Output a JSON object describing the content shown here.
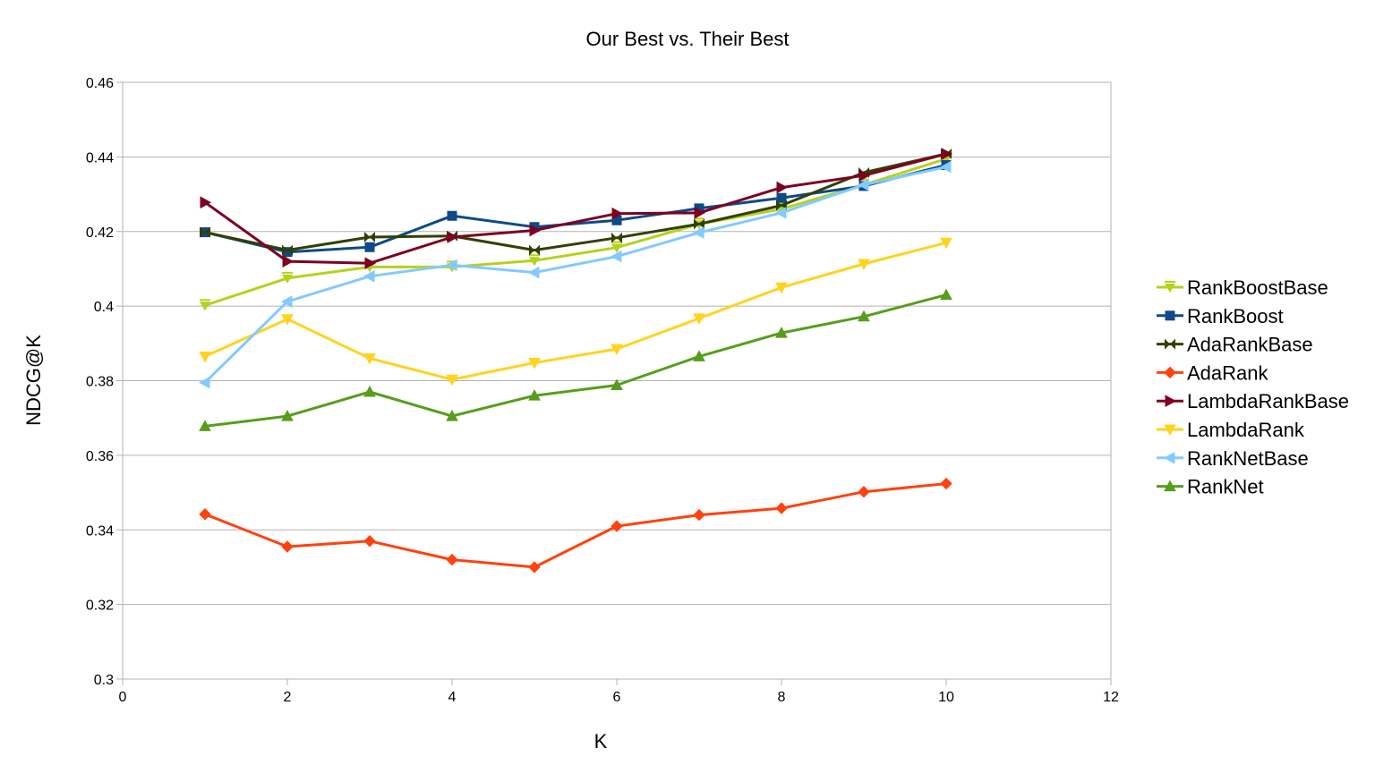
{
  "chart_data": {
    "type": "line",
    "title": "Our Best vs. Their Best",
    "xlabel": "K",
    "ylabel": "NDCG@K",
    "xlim": [
      0,
      12
    ],
    "ylim": [
      0.3,
      0.46
    ],
    "x_ticks": [
      "0",
      "2",
      "4",
      "6",
      "8",
      "10",
      "12"
    ],
    "y_ticks": [
      "0.3",
      "0.32",
      "0.34",
      "0.36",
      "0.38",
      "0.4",
      "0.42",
      "0.44",
      "0.46"
    ],
    "grid": "horizontal",
    "legend_position": "right",
    "x": [
      1,
      2,
      3,
      4,
      5,
      6,
      7,
      8,
      9,
      10
    ],
    "series": [
      {
        "name": "RankBoostBase",
        "color": "#b5d21a",
        "marker": "triangle-down-bar",
        "values": [
          0.4002,
          0.4075,
          0.4105,
          0.4105,
          0.4122,
          0.4157,
          0.422,
          0.426,
          0.4325,
          0.4395
        ]
      },
      {
        "name": "RankBoost",
        "color": "#0d4a87",
        "marker": "square",
        "values": [
          0.4198,
          0.4145,
          0.4158,
          0.4242,
          0.4212,
          0.423,
          0.4262,
          0.429,
          0.4322,
          0.4378
        ]
      },
      {
        "name": "AdaRankBase",
        "color": "#314004",
        "marker": "bowtie",
        "values": [
          0.4198,
          0.415,
          0.4185,
          0.4188,
          0.415,
          0.4183,
          0.422,
          0.427,
          0.4358,
          0.4408
        ]
      },
      {
        "name": "AdaRank",
        "color": "#ff420e",
        "marker": "diamond",
        "values": [
          0.3442,
          0.3355,
          0.337,
          0.332,
          0.33,
          0.341,
          0.344,
          0.3458,
          0.3502,
          0.3524
        ]
      },
      {
        "name": "LambdaRankBase",
        "color": "#7e0021",
        "marker": "triangle-right",
        "values": [
          0.4278,
          0.412,
          0.4115,
          0.4185,
          0.4203,
          0.4248,
          0.425,
          0.4318,
          0.435,
          0.4408
        ]
      },
      {
        "name": "LambdaRank",
        "color": "#ffd320",
        "marker": "triangle-down",
        "values": [
          0.3865,
          0.3965,
          0.386,
          0.3803,
          0.3848,
          0.3885,
          0.3967,
          0.405,
          0.4113,
          0.417
        ]
      },
      {
        "name": "RankNetBase",
        "color": "#83caff",
        "marker": "triangle-left",
        "values": [
          0.3795,
          0.4012,
          0.408,
          0.411,
          0.409,
          0.4133,
          0.4197,
          0.425,
          0.4325,
          0.4373
        ]
      },
      {
        "name": "RankNet",
        "color": "#579d1c",
        "marker": "triangle-up",
        "values": [
          0.3678,
          0.3705,
          0.377,
          0.3705,
          0.376,
          0.3788,
          0.3865,
          0.3928,
          0.3972,
          0.403
        ]
      }
    ]
  }
}
